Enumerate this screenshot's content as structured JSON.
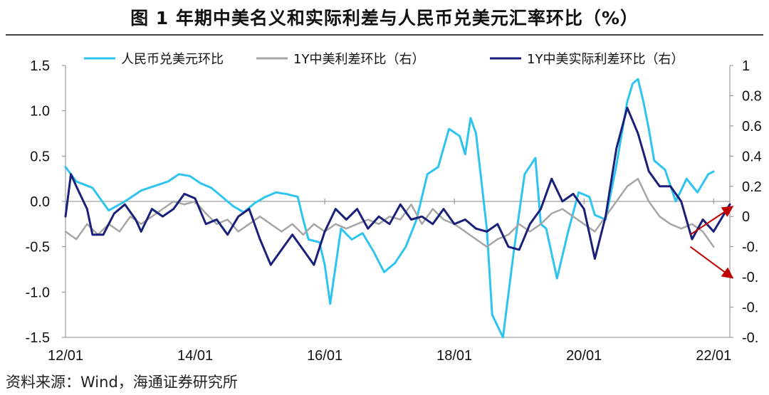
{
  "title": "图 1 年期中美名义和实际利差与人民币兑美元汇率环比（%）",
  "source": "资料来源：Wind，海通证券研究所",
  "colors": {
    "cny": "#2EC4F0",
    "nominal": "#A6A6A6",
    "real": "#1A1F7A",
    "arrow": "#C00000",
    "axis": "#888888"
  },
  "chart_data": {
    "type": "line",
    "title": "图 1 年期中美名义和实际利差与人民币兑美元汇率环比（%）",
    "x_start": "2012-01",
    "x_end": "2022-04",
    "x_ticks": [
      "12/01",
      "14/01",
      "16/01",
      "18/01",
      "20/01",
      "22/01"
    ],
    "left_axis": {
      "ylim": [
        -1.5,
        1.5
      ],
      "ticks": [
        1.5,
        1.0,
        0.5,
        0.0,
        -0.5,
        -1.0,
        -1.5
      ],
      "tick_labels": [
        "1.5",
        "1.0",
        "0.5",
        "0.0",
        "-0.5",
        "-1.0",
        "-1.5"
      ]
    },
    "right_axis": {
      "ylim": [
        -0.8,
        1.0
      ],
      "ticks": [
        1.0,
        0.8,
        0.6,
        0.4,
        0.2,
        0.0,
        -0.2,
        -0.4,
        -0.6,
        -0.8
      ],
      "tick_labels": [
        "1",
        "0.8",
        "0.6",
        "0.4",
        "0.2",
        "0",
        "-0.",
        "-0.",
        "-0.",
        "-0."
      ]
    },
    "legend": [
      "人民币兑美元环比",
      "1Y中美利差环比（右）",
      "1Y中美实际利差环比（右）"
    ],
    "series": [
      {
        "name": "人民币兑美元环比",
        "axis": "left",
        "key": "cny",
        "points": [
          [
            "2012-01",
            0.38
          ],
          [
            "2012-03",
            0.22
          ],
          [
            "2012-06",
            0.15
          ],
          [
            "2012-09",
            -0.1
          ],
          [
            "2012-12",
            0.0
          ],
          [
            "2013-03",
            0.12
          ],
          [
            "2013-06",
            0.18
          ],
          [
            "2013-08",
            0.22
          ],
          [
            "2013-10",
            0.3
          ],
          [
            "2013-12",
            0.28
          ],
          [
            "2014-02",
            0.2
          ],
          [
            "2014-04",
            0.15
          ],
          [
            "2014-06",
            0.05
          ],
          [
            "2014-08",
            -0.05
          ],
          [
            "2014-10",
            -0.12
          ],
          [
            "2014-12",
            -0.02
          ],
          [
            "2015-02",
            0.05
          ],
          [
            "2015-04",
            0.1
          ],
          [
            "2015-06",
            0.08
          ],
          [
            "2015-08",
            0.05
          ],
          [
            "2015-09",
            -0.2
          ],
          [
            "2015-10",
            -0.42
          ],
          [
            "2015-12",
            -0.45
          ],
          [
            "2016-01",
            -0.7
          ],
          [
            "2016-02",
            -1.13
          ],
          [
            "2016-04",
            -0.3
          ],
          [
            "2016-06",
            -0.42
          ],
          [
            "2016-08",
            -0.35
          ],
          [
            "2016-10",
            -0.55
          ],
          [
            "2016-12",
            -0.78
          ],
          [
            "2017-02",
            -0.68
          ],
          [
            "2017-04",
            -0.5
          ],
          [
            "2017-06",
            -0.2
          ],
          [
            "2017-08",
            0.3
          ],
          [
            "2017-10",
            0.38
          ],
          [
            "2017-12",
            0.8
          ],
          [
            "2018-02",
            0.72
          ],
          [
            "2018-03",
            0.52
          ],
          [
            "2018-04",
            0.92
          ],
          [
            "2018-05",
            0.75
          ],
          [
            "2018-07",
            -0.3
          ],
          [
            "2018-08",
            -1.25
          ],
          [
            "2018-10",
            -1.5
          ],
          [
            "2018-12",
            -0.55
          ],
          [
            "2019-02",
            0.3
          ],
          [
            "2019-04",
            0.48
          ],
          [
            "2019-05",
            -0.25
          ],
          [
            "2019-06",
            -0.3
          ],
          [
            "2019-08",
            -0.85
          ],
          [
            "2019-10",
            -0.35
          ],
          [
            "2019-12",
            0.1
          ],
          [
            "2020-02",
            0.05
          ],
          [
            "2020-03",
            -0.15
          ],
          [
            "2020-05",
            -0.2
          ],
          [
            "2020-07",
            0.4
          ],
          [
            "2020-09",
            1.1
          ],
          [
            "2020-10",
            1.3
          ],
          [
            "2020-11",
            1.35
          ],
          [
            "2020-12",
            1.1
          ],
          [
            "2021-01",
            0.8
          ],
          [
            "2021-02",
            0.45
          ],
          [
            "2021-04",
            0.35
          ],
          [
            "2021-06",
            0.0
          ],
          [
            "2021-08",
            0.25
          ],
          [
            "2021-10",
            0.1
          ],
          [
            "2021-12",
            0.3
          ],
          [
            "2022-01",
            0.33
          ]
        ]
      },
      {
        "name": "1Y中美利差环比（右）",
        "axis": "right",
        "key": "nominal",
        "points": [
          [
            "2012-01",
            -0.1
          ],
          [
            "2012-03",
            -0.15
          ],
          [
            "2012-05",
            -0.05
          ],
          [
            "2012-07",
            -0.12
          ],
          [
            "2012-09",
            -0.05
          ],
          [
            "2012-11",
            -0.1
          ],
          [
            "2013-01",
            0.0
          ],
          [
            "2013-03",
            -0.05
          ],
          [
            "2013-05",
            0.0
          ],
          [
            "2013-07",
            0.05
          ],
          [
            "2013-09",
            0.1
          ],
          [
            "2013-11",
            0.08
          ],
          [
            "2014-01",
            0.1
          ],
          [
            "2014-03",
            0.02
          ],
          [
            "2014-05",
            -0.05
          ],
          [
            "2014-07",
            -0.02
          ],
          [
            "2014-09",
            -0.1
          ],
          [
            "2014-11",
            -0.05
          ],
          [
            "2015-01",
            0.0
          ],
          [
            "2015-03",
            -0.05
          ],
          [
            "2015-05",
            -0.1
          ],
          [
            "2015-07",
            -0.05
          ],
          [
            "2015-09",
            -0.12
          ],
          [
            "2015-11",
            -0.05
          ],
          [
            "2016-01",
            -0.1
          ],
          [
            "2016-03",
            -0.05
          ],
          [
            "2016-05",
            -0.08
          ],
          [
            "2016-07",
            -0.05
          ],
          [
            "2016-09",
            -0.02
          ],
          [
            "2016-11",
            -0.05
          ],
          [
            "2017-01",
            0.0
          ],
          [
            "2017-03",
            -0.02
          ],
          [
            "2017-05",
            0.08
          ],
          [
            "2017-07",
            -0.05
          ],
          [
            "2017-09",
            0.05
          ],
          [
            "2017-11",
            -0.02
          ],
          [
            "2018-01",
            -0.05
          ],
          [
            "2018-03",
            -0.1
          ],
          [
            "2018-05",
            -0.15
          ],
          [
            "2018-07",
            -0.2
          ],
          [
            "2018-09",
            -0.15
          ],
          [
            "2018-11",
            -0.12
          ],
          [
            "2019-01",
            -0.05
          ],
          [
            "2019-03",
            -0.1
          ],
          [
            "2019-05",
            -0.05
          ],
          [
            "2019-07",
            0.02
          ],
          [
            "2019-09",
            0.05
          ],
          [
            "2019-11",
            0.0
          ],
          [
            "2020-01",
            -0.05
          ],
          [
            "2020-03",
            -0.1
          ],
          [
            "2020-05",
            0.0
          ],
          [
            "2020-07",
            0.1
          ],
          [
            "2020-09",
            0.2
          ],
          [
            "2020-11",
            0.25
          ],
          [
            "2021-01",
            0.1
          ],
          [
            "2021-03",
            0.0
          ],
          [
            "2021-05",
            -0.05
          ],
          [
            "2021-07",
            -0.08
          ],
          [
            "2021-09",
            -0.05
          ],
          [
            "2021-11",
            -0.1
          ],
          [
            "2022-01",
            -0.2
          ]
        ]
      },
      {
        "name": "1Y中美实际利差环比（右）",
        "axis": "right",
        "key": "real",
        "points": [
          [
            "2012-01",
            0.0
          ],
          [
            "2012-02",
            0.28
          ],
          [
            "2012-03",
            0.2
          ],
          [
            "2012-05",
            0.05
          ],
          [
            "2012-06",
            -0.12
          ],
          [
            "2012-08",
            -0.12
          ],
          [
            "2012-10",
            0.02
          ],
          [
            "2012-12",
            0.08
          ],
          [
            "2013-02",
            -0.02
          ],
          [
            "2013-03",
            -0.1
          ],
          [
            "2013-05",
            0.05
          ],
          [
            "2013-07",
            0.0
          ],
          [
            "2013-09",
            0.05
          ],
          [
            "2013-11",
            0.15
          ],
          [
            "2014-01",
            0.12
          ],
          [
            "2014-03",
            -0.05
          ],
          [
            "2014-05",
            -0.02
          ],
          [
            "2014-07",
            -0.12
          ],
          [
            "2014-09",
            0.0
          ],
          [
            "2014-11",
            0.05
          ],
          [
            "2015-01",
            -0.15
          ],
          [
            "2015-03",
            -0.32
          ],
          [
            "2015-05",
            -0.22
          ],
          [
            "2015-07",
            -0.12
          ],
          [
            "2015-09",
            -0.22
          ],
          [
            "2015-11",
            -0.32
          ],
          [
            "2016-01",
            -0.1
          ],
          [
            "2016-03",
            0.05
          ],
          [
            "2016-05",
            -0.02
          ],
          [
            "2016-07",
            0.05
          ],
          [
            "2016-09",
            -0.08
          ],
          [
            "2016-11",
            0.0
          ],
          [
            "2017-01",
            -0.05
          ],
          [
            "2017-03",
            0.08
          ],
          [
            "2017-05",
            -0.02
          ],
          [
            "2017-07",
            0.0
          ],
          [
            "2017-09",
            -0.05
          ],
          [
            "2017-11",
            0.05
          ],
          [
            "2018-01",
            -0.05
          ],
          [
            "2018-03",
            -0.02
          ],
          [
            "2018-05",
            -0.08
          ],
          [
            "2018-07",
            -0.1
          ],
          [
            "2018-09",
            -0.05
          ],
          [
            "2018-11",
            -0.2
          ],
          [
            "2019-01",
            -0.22
          ],
          [
            "2019-03",
            -0.05
          ],
          [
            "2019-05",
            0.05
          ],
          [
            "2019-07",
            0.25
          ],
          [
            "2019-09",
            0.1
          ],
          [
            "2019-11",
            0.15
          ],
          [
            "2020-01",
            0.05
          ],
          [
            "2020-03",
            -0.28
          ],
          [
            "2020-05",
            0.0
          ],
          [
            "2020-07",
            0.45
          ],
          [
            "2020-09",
            0.72
          ],
          [
            "2020-11",
            0.55
          ],
          [
            "2021-01",
            0.3
          ],
          [
            "2021-03",
            0.2
          ],
          [
            "2021-05",
            0.2
          ],
          [
            "2021-07",
            0.1
          ],
          [
            "2021-09",
            -0.15
          ],
          [
            "2021-11",
            -0.02
          ],
          [
            "2022-01",
            -0.1
          ],
          [
            "2022-04",
            0.08
          ]
        ]
      }
    ],
    "annotations": [
      {
        "type": "arrow",
        "from": [
          "2021-10",
          -0.12
        ],
        "to": [
          "2022-04",
          0.06
        ],
        "axis": "right"
      },
      {
        "type": "arrow",
        "from": [
          "2021-10",
          -0.2
        ],
        "to": [
          "2022-04",
          -0.4
        ],
        "axis": "right"
      }
    ]
  }
}
